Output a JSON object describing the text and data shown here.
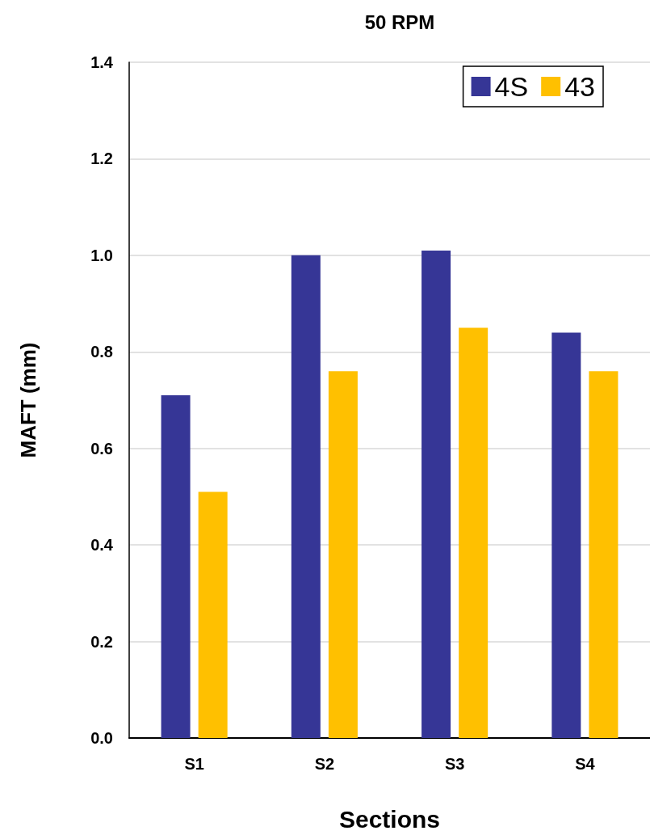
{
  "chart_data": {
    "type": "bar",
    "title": "50 RPM",
    "xlabel": "Sections",
    "ylabel": "MAFT (mm)",
    "categories": [
      "S1",
      "S2",
      "S3",
      "S4"
    ],
    "series": [
      {
        "name": "4S",
        "color": "#363696",
        "values": [
          0.71,
          1.0,
          1.01,
          0.84
        ]
      },
      {
        "name": "43",
        "color": "#ffc000",
        "values": [
          0.51,
          0.76,
          0.85,
          0.76
        ]
      }
    ],
    "ylim": [
      0,
      1.4
    ],
    "yticks": [
      {
        "value": 0,
        "label": "0.0"
      },
      0.2,
      0.4,
      0.6,
      0.8,
      {
        "value": 1,
        "label": "1.0"
      },
      1.2,
      1.4
    ],
    "grid": "y",
    "legend": "top right"
  }
}
